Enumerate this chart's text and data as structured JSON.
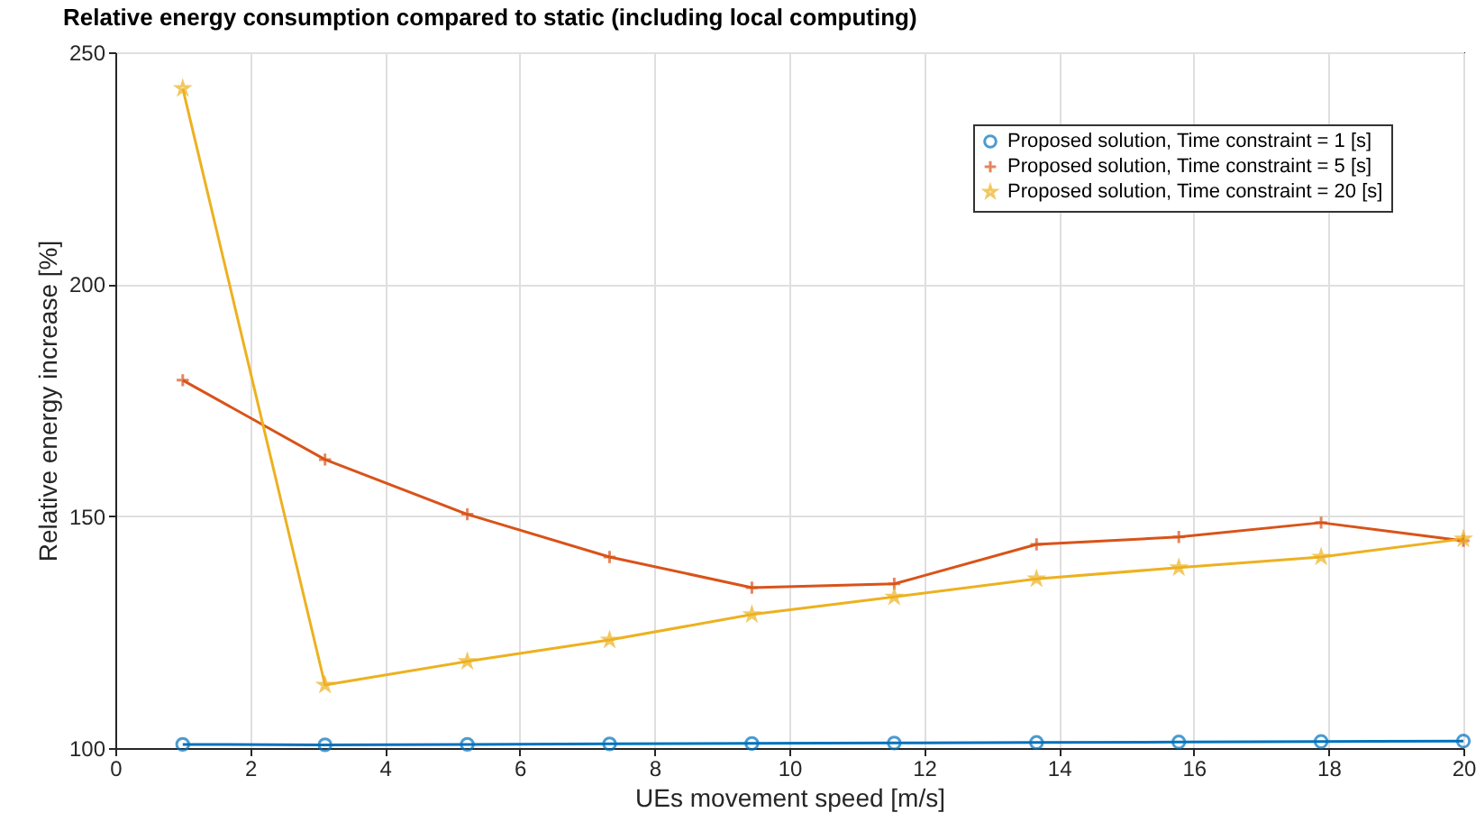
{
  "chart_data": {
    "type": "line",
    "title": "Relative energy consumption compared to static (including local computing)",
    "xlabel": "UEs movement speed [m/s]",
    "ylabel": "Relative energy increase [%]",
    "x": [
      1,
      3.111,
      5.222,
      7.333,
      9.444,
      11.556,
      13.667,
      15.778,
      17.889,
      20
    ],
    "xlim": [
      0,
      20
    ],
    "xticks": [
      0,
      2,
      4,
      6,
      8,
      10,
      12,
      14,
      16,
      18,
      20
    ],
    "ylim": [
      100,
      250
    ],
    "yticks": [
      100,
      150,
      200,
      250
    ],
    "grid": true,
    "legend": "top right",
    "line_style": "solid",
    "series": [
      {
        "name": "Proposed solution, Time constraint = 1 [s]",
        "color": "#0072bd",
        "marker": "circle",
        "values": [
          100.8,
          100.7,
          100.8,
          100.9,
          101,
          101.1,
          101.2,
          101.3,
          101.4,
          101.5
        ]
      },
      {
        "name": "Proposed solution, Time constraint = 5 [s]",
        "color": "#d95319",
        "marker": "cross",
        "values": [
          179.3,
          162.2,
          150.4,
          141.2,
          134.6,
          135.4,
          143.9,
          145.5,
          148.6,
          144.7
        ]
      },
      {
        "name": "Proposed solution, Time constraint = 20 [s]",
        "color": "#edb120",
        "marker": "star",
        "values": [
          242.2,
          113.6,
          118.7,
          123.3,
          128.8,
          132.6,
          136.5,
          138.9,
          141.2,
          145.1
        ]
      }
    ]
  }
}
